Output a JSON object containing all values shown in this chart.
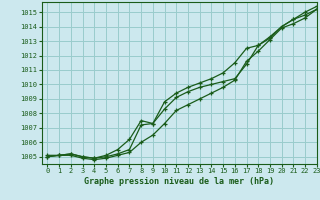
{
  "title": "Graphe pression niveau de la mer (hPa)",
  "bg_color": "#cce8ee",
  "grid_color": "#99cccc",
  "line_color": "#1a5c1a",
  "xlim": [
    -0.5,
    23
  ],
  "ylim": [
    1004.5,
    1015.7
  ],
  "yticks": [
    1005,
    1006,
    1007,
    1008,
    1009,
    1010,
    1011,
    1012,
    1013,
    1014,
    1015
  ],
  "xticks": [
    0,
    1,
    2,
    3,
    4,
    5,
    6,
    7,
    8,
    9,
    10,
    11,
    12,
    13,
    14,
    15,
    16,
    17,
    18,
    19,
    20,
    21,
    22,
    23
  ],
  "series1_y": [
    1005.1,
    1005.1,
    1005.2,
    1005.0,
    1004.9,
    1005.0,
    1005.2,
    1005.5,
    1007.2,
    1007.3,
    1008.3,
    1009.1,
    1009.5,
    1009.8,
    1010.0,
    1010.2,
    1010.4,
    1011.4,
    1012.7,
    1013.2,
    1014.0,
    1014.5,
    1014.8,
    1015.2
  ],
  "series2_y": [
    1005.0,
    1005.1,
    1005.1,
    1004.9,
    1004.8,
    1004.9,
    1005.1,
    1005.3,
    1006.0,
    1006.5,
    1007.3,
    1008.2,
    1008.6,
    1009.0,
    1009.4,
    1009.8,
    1010.3,
    1011.6,
    1012.3,
    1013.1,
    1013.9,
    1014.2,
    1014.6,
    1015.2
  ],
  "series3_y": [
    1005.0,
    1005.1,
    1005.2,
    1005.0,
    1004.9,
    1005.1,
    1005.5,
    1006.2,
    1007.5,
    1007.3,
    1008.8,
    1009.4,
    1009.8,
    1010.1,
    1010.4,
    1010.8,
    1011.5,
    1012.5,
    1012.7,
    1013.3,
    1014.0,
    1014.5,
    1015.0,
    1015.4
  ],
  "ylabel_fontsize": 5,
  "xlabel_fontsize": 6,
  "tick_fontsize": 5
}
